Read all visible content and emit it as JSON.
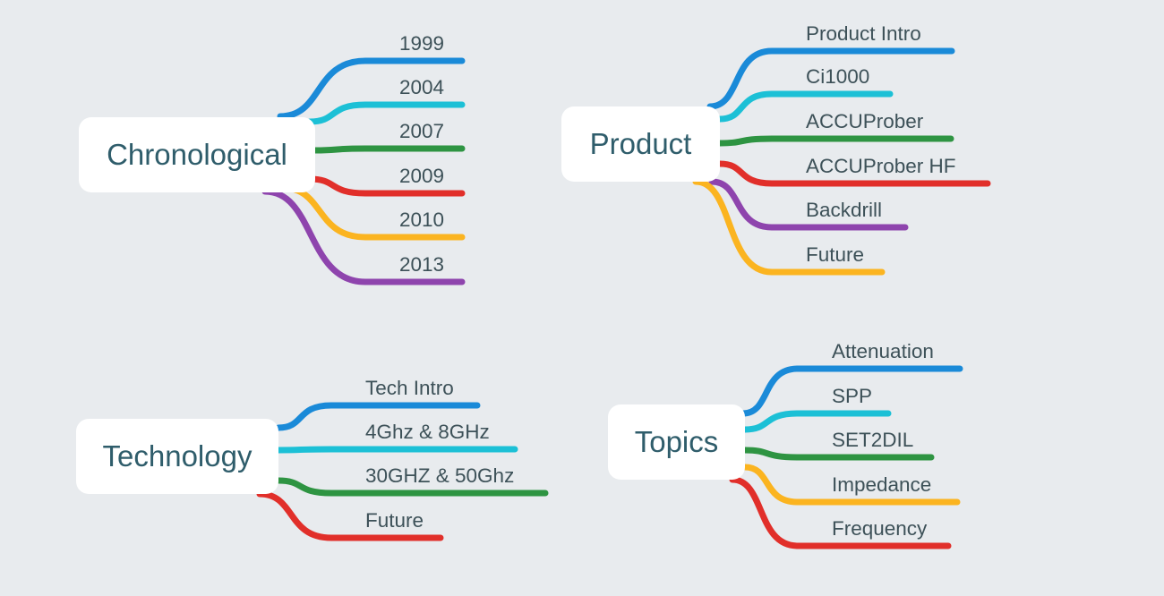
{
  "colors": {
    "blue": "#1a8ad8",
    "cyan": "#1cc0d6",
    "green": "#2e9442",
    "red": "#e12f2a",
    "orange": "#fbb420",
    "purple": "#8e44ad",
    "node_text": "#2f5d6b",
    "label_text": "#3d5158",
    "background": "#e8ebee"
  },
  "topics": {
    "chronological": {
      "title": "Chronological",
      "branches": [
        {
          "label": "1999",
          "color": "blue"
        },
        {
          "label": "2004",
          "color": "cyan"
        },
        {
          "label": "2007",
          "color": "green"
        },
        {
          "label": "2009",
          "color": "red"
        },
        {
          "label": "2010",
          "color": "orange"
        },
        {
          "label": "2013",
          "color": "purple"
        }
      ]
    },
    "product": {
      "title": "Product",
      "branches": [
        {
          "label": "Product Intro",
          "color": "blue"
        },
        {
          "label": "Ci1000",
          "color": "cyan"
        },
        {
          "label": "ACCUProber",
          "color": "green"
        },
        {
          "label": "ACCUProber HF",
          "color": "red"
        },
        {
          "label": "Backdrill",
          "color": "purple"
        },
        {
          "label": "Future",
          "color": "orange"
        }
      ]
    },
    "technology": {
      "title": "Technology",
      "branches": [
        {
          "label": "Tech Intro",
          "color": "blue"
        },
        {
          "label": "4Ghz & 8GHz",
          "color": "cyan"
        },
        {
          "label": "30GHZ & 50Ghz",
          "color": "green"
        },
        {
          "label": "Future",
          "color": "red"
        }
      ]
    },
    "topics": {
      "title": "Topics",
      "branches": [
        {
          "label": "Attenuation",
          "color": "blue"
        },
        {
          "label": "SPP",
          "color": "cyan"
        },
        {
          "label": "SET2DIL",
          "color": "green"
        },
        {
          "label": "Impedance",
          "color": "orange"
        },
        {
          "label": "Frequency",
          "color": "red"
        }
      ]
    }
  }
}
